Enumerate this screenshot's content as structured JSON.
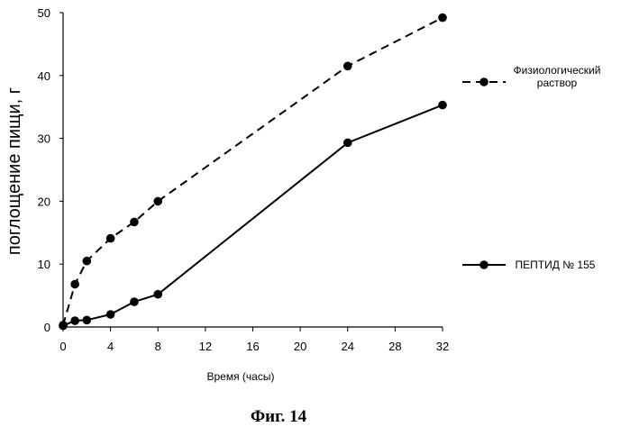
{
  "chart_data": {
    "type": "line",
    "xlabel": "Время (часы)",
    "ylabel": "поглощение пищи, г",
    "xlim": [
      0,
      32
    ],
    "ylim": [
      0,
      50
    ],
    "xticks": [
      0,
      4,
      8,
      12,
      16,
      20,
      24,
      28,
      32
    ],
    "yticks": [
      0,
      10,
      20,
      30,
      40,
      50
    ],
    "grid": false,
    "legend_position": "right",
    "series": [
      {
        "name": "Физиологический раствор",
        "name_lines": [
          "Физиологический",
          "раствор"
        ],
        "style": "dashed",
        "color": "#000000",
        "x": [
          0,
          1,
          2,
          4,
          6,
          8,
          24,
          32
        ],
        "y": [
          0.3,
          6.8,
          10.5,
          14.1,
          16.7,
          20.0,
          41.5,
          49.2
        ]
      },
      {
        "name": "ПЕПТИД №  155",
        "name_lines": [
          "ПЕПТИД №  155"
        ],
        "style": "solid",
        "color": "#000000",
        "x": [
          0,
          1,
          2,
          4,
          6,
          8,
          24,
          32
        ],
        "y": [
          0.2,
          1.0,
          1.1,
          2.0,
          4.0,
          5.2,
          29.3,
          35.3
        ]
      }
    ]
  },
  "caption": "Фиг. 14"
}
